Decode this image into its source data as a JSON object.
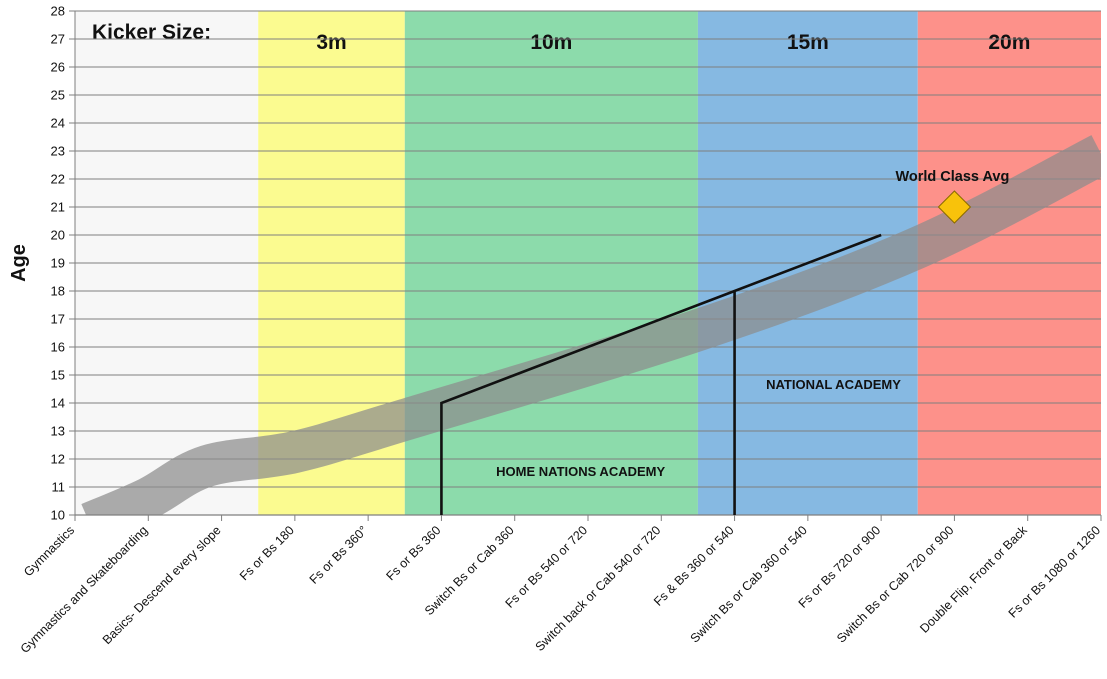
{
  "chart_data": {
    "type": "line",
    "ylabel": "Age",
    "ylim": [
      10,
      28
    ],
    "yticks": [
      10,
      11,
      12,
      13,
      14,
      15,
      16,
      17,
      18,
      19,
      20,
      21,
      22,
      23,
      24,
      25,
      26,
      27,
      28
    ],
    "categories": [
      "Gymnastics",
      "Gymnastics and Skateboarding",
      "Basics- Descend every slope",
      "Fs or Bs 180",
      "Fs or Bs 360°",
      "Fs or Bs 360",
      "Switch Bs or Cab 360",
      "Fs or Bs 540 or 720",
      "Switch back or Cab 540 or 720",
      "Fs & Bs 360 or 540",
      "Switch Bs or Cab 360 or 540",
      "Fs or Bs 720 or 900",
      "Switch Bs or Cab 720 or 900",
      "Double Flip, Front or Back",
      "Fs or Bs 1080 or 1260"
    ],
    "grid": true,
    "kicker_label": "Kicker Size:",
    "kicker_zones": [
      {
        "label": "",
        "from": -0.5,
        "to": 2.5,
        "color": "#f7f7f7"
      },
      {
        "label": "3m",
        "from": 2.5,
        "to": 4.5,
        "color": "#fbfb90"
      },
      {
        "label": "10m",
        "from": 4.5,
        "to": 8.5,
        "color": "#8cdbab"
      },
      {
        "label": "15m",
        "from": 8.5,
        "to": 11.5,
        "color": "#86b9e2"
      },
      {
        "label": "20m",
        "from": 11.5,
        "to": 14.0,
        "color": "#fd918a"
      }
    ],
    "band": {
      "color": "#8c8c8c",
      "center": [
        [
          0.2,
          9.7
        ],
        [
          1.0,
          10.6
        ],
        [
          1.8,
          11.75
        ],
        [
          3.0,
          12.25
        ],
        [
          4.5,
          13.4
        ],
        [
          8.5,
          16.6
        ],
        [
          11.5,
          19.55
        ],
        [
          14.0,
          22.9
        ]
      ]
    },
    "pathways": [
      {
        "name": "HOME NATIONS ACADEMY",
        "points": [
          [
            5,
            10
          ],
          [
            5,
            14
          ],
          [
            9,
            18
          ],
          [
            11,
            20
          ]
        ]
      },
      {
        "name": "NATIONAL ACADEMY",
        "points": [
          [
            9,
            10
          ],
          [
            9,
            18
          ]
        ]
      }
    ],
    "marker": {
      "label": "World Class Avg",
      "x": 12,
      "y": 21,
      "color": "#f8c20b"
    },
    "annotations": [
      {
        "text": "HOME NATIONS ACADEMY",
        "x": 6.9,
        "y": 11.4
      },
      {
        "text": "NATIONAL ACADEMY",
        "x": 10.35,
        "y": 14.5
      }
    ]
  }
}
